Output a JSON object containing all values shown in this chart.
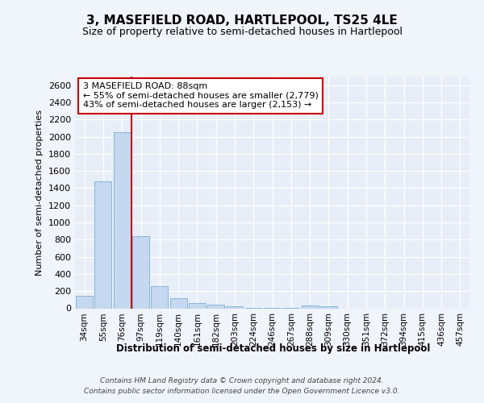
{
  "title1": "3, MASEFIELD ROAD, HARTLEPOOL, TS25 4LE",
  "title2": "Size of property relative to semi-detached houses in Hartlepool",
  "xlabel": "Distribution of semi-detached houses by size in Hartlepool",
  "ylabel": "Number of semi-detached properties",
  "categories": [
    "34sqm",
    "55sqm",
    "76sqm",
    "97sqm",
    "119sqm",
    "140sqm",
    "161sqm",
    "182sqm",
    "203sqm",
    "224sqm",
    "246sqm",
    "267sqm",
    "288sqm",
    "309sqm",
    "330sqm",
    "351sqm",
    "372sqm",
    "394sqm",
    "415sqm",
    "436sqm",
    "457sqm"
  ],
  "values": [
    150,
    1475,
    2050,
    840,
    255,
    115,
    65,
    40,
    20,
    5,
    5,
    5,
    30,
    20,
    0,
    0,
    0,
    0,
    0,
    0,
    0
  ],
  "bar_color": "#c5d8ef",
  "bar_edge_color": "#7aafd4",
  "property_line_x": 2.5,
  "annotation_text_line1": "3 MASEFIELD ROAD: 88sqm",
  "annotation_text_line2": "← 55% of semi-detached houses are smaller (2,779)",
  "annotation_text_line3": "43% of semi-detached houses are larger (2,153) →",
  "ylim": [
    0,
    2700
  ],
  "yticks": [
    0,
    200,
    400,
    600,
    800,
    1000,
    1200,
    1400,
    1600,
    1800,
    2000,
    2200,
    2400,
    2600
  ],
  "footer_line1": "Contains HM Land Registry data © Crown copyright and database right 2024.",
  "footer_line2": "Contains public sector information licensed under the Open Government Licence v3.0.",
  "background_color": "#f0f4fb",
  "plot_bg_color": "#e8eef8",
  "grid_color": "#ffffff",
  "annotation_box_color": "#ffffff",
  "annotation_box_edge_color": "#cc0000",
  "property_line_color": "#cc0000"
}
